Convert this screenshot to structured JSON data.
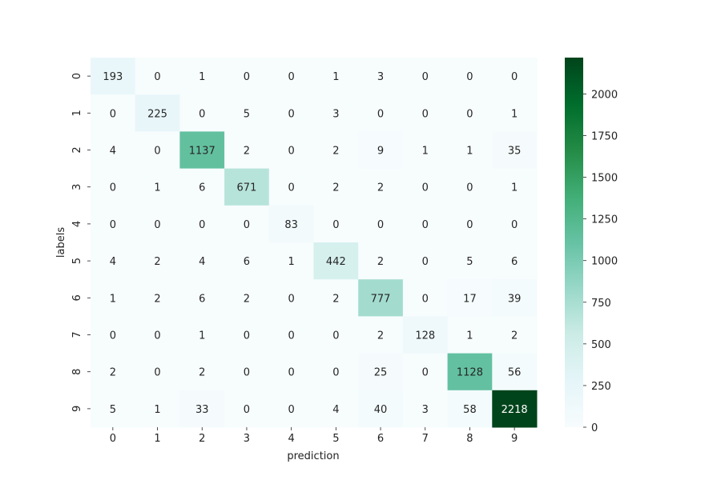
{
  "chart_data": {
    "type": "heatmap",
    "title": "",
    "xlabel": "prediction",
    "ylabel": "labels",
    "x_categories": [
      "0",
      "1",
      "2",
      "3",
      "4",
      "5",
      "6",
      "7",
      "8",
      "9"
    ],
    "y_categories": [
      "0",
      "1",
      "2",
      "3",
      "4",
      "5",
      "6",
      "7",
      "8",
      "9"
    ],
    "matrix": [
      [
        193,
        0,
        1,
        0,
        0,
        1,
        3,
        0,
        0,
        0
      ],
      [
        0,
        225,
        0,
        5,
        0,
        3,
        0,
        0,
        0,
        1
      ],
      [
        4,
        0,
        1137,
        2,
        0,
        2,
        9,
        1,
        1,
        35
      ],
      [
        0,
        1,
        6,
        671,
        0,
        2,
        2,
        0,
        0,
        1
      ],
      [
        0,
        0,
        0,
        0,
        83,
        0,
        0,
        0,
        0,
        0
      ],
      [
        4,
        2,
        4,
        6,
        1,
        442,
        2,
        0,
        5,
        6
      ],
      [
        1,
        2,
        6,
        2,
        0,
        2,
        777,
        0,
        17,
        39
      ],
      [
        0,
        0,
        1,
        0,
        0,
        0,
        2,
        128,
        1,
        2
      ],
      [
        2,
        0,
        2,
        0,
        0,
        0,
        25,
        0,
        1128,
        56
      ],
      [
        5,
        1,
        33,
        0,
        0,
        4,
        40,
        3,
        58,
        2218
      ]
    ],
    "colormap": "BuGn",
    "colormap_stops": [
      "#f7fcfd",
      "#e5f5f9",
      "#ccece6",
      "#99d8c9",
      "#66c2a4",
      "#41ae76",
      "#238b45",
      "#006d2c",
      "#00441b"
    ],
    "value_range": [
      0,
      2218
    ],
    "colorbar_ticks": [
      0,
      250,
      500,
      750,
      1000,
      1250,
      1500,
      1750,
      2000
    ],
    "annotated": true,
    "grid": false
  }
}
